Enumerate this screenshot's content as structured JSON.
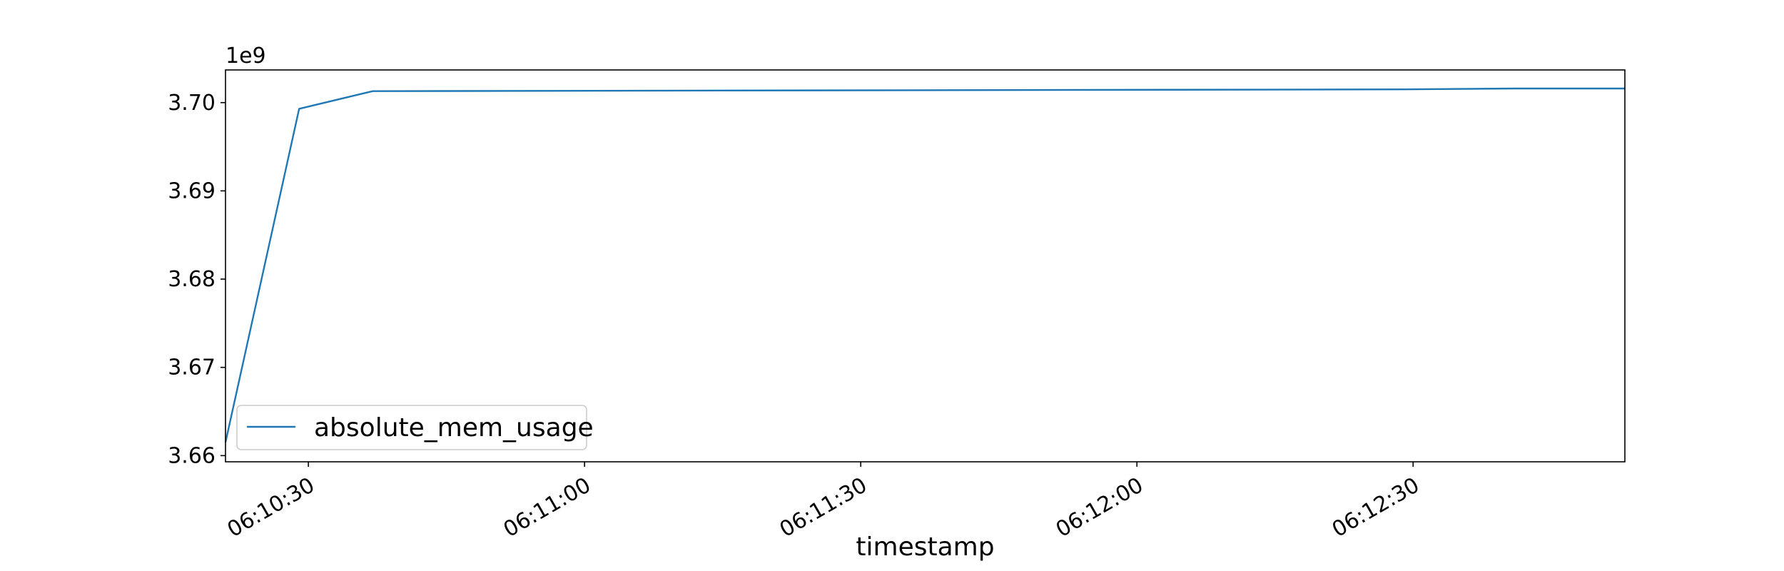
{
  "chart_data": {
    "type": "line",
    "title": "",
    "xlabel": "timestamp",
    "ylabel": "",
    "y_offset_label": "1e9",
    "y_scale": 1000000000,
    "xlim": [
      "06:10:21",
      "06:12:53"
    ],
    "ylim": [
      3.6593,
      3.7037
    ],
    "x_ticks": [
      "06:10:30",
      "06:11:00",
      "06:11:30",
      "06:12:00",
      "06:12:30"
    ],
    "y_ticks": [
      3.66,
      3.67,
      3.68,
      3.69,
      3.7
    ],
    "y_tick_labels": [
      "3.66",
      "3.67",
      "3.68",
      "3.69",
      "3.70"
    ],
    "grid": false,
    "legend_position": "lower-left",
    "series": [
      {
        "name": "absolute_mem_usage",
        "color": "#1f77b4",
        "x": [
          "06:10:21",
          "06:10:29",
          "06:10:37",
          "06:12:29",
          "06:12:41",
          "06:12:53"
        ],
        "values": [
          3.6615,
          3.6993,
          3.7013,
          3.7015,
          3.7016,
          3.7016
        ]
      }
    ]
  }
}
